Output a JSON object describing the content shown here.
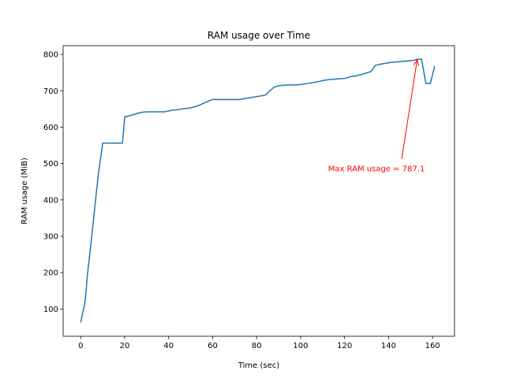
{
  "chart_data": {
    "type": "line",
    "title": "RAM usage over Time",
    "xlabel": "Time (sec)",
    "ylabel": "RAM usage (MiB)",
    "xlim": [
      -8,
      170
    ],
    "ylim": [
      25,
      824
    ],
    "xticks": [
      0,
      20,
      40,
      60,
      80,
      100,
      120,
      140,
      160
    ],
    "yticks": [
      100,
      200,
      300,
      400,
      500,
      600,
      700,
      800
    ],
    "grid": false,
    "line_color": "#1f77b4",
    "series": [
      {
        "x": [
          0,
          2,
          3,
          5,
          8,
          10,
          12,
          19,
          20,
          22,
          26,
          28,
          30,
          38,
          41,
          44,
          46,
          50,
          53,
          56,
          58,
          60,
          65,
          72,
          76,
          79,
          82,
          84,
          86,
          88,
          90,
          94,
          98,
          101,
          104,
          108,
          110,
          113,
          118,
          120,
          123,
          126,
          130,
          132,
          134,
          137,
          141,
          145,
          151,
          153,
          155,
          157,
          159,
          161
        ],
        "y": [
          63,
          120,
          190,
          300,
          470,
          556,
          556,
          556,
          628,
          631,
          638,
          641,
          642,
          642,
          646,
          648,
          650,
          653,
          658,
          666,
          671,
          676,
          676,
          676,
          680,
          683,
          686,
          688,
          700,
          710,
          714,
          716,
          716,
          718,
          721,
          725,
          728,
          731,
          733,
          734,
          739,
          742,
          749,
          753,
          770,
          774,
          778,
          780,
          783,
          787,
          787,
          720,
          720,
          768
        ]
      }
    ],
    "annotation": {
      "text": "Max RAM usage = 787.1",
      "xy": [
        153,
        787.1
      ],
      "text_xy": [
        134.5,
        487
      ],
      "color": "#ff0000"
    }
  }
}
